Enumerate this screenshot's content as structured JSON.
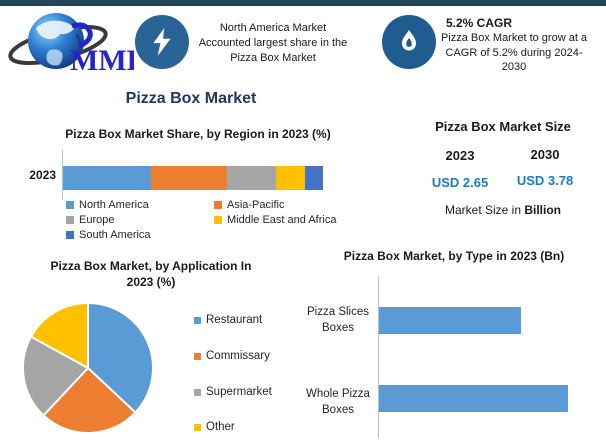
{
  "colors": {
    "topbar": "#23455A",
    "navy_title": "#1F3864",
    "usd_blue": "#1D7AC2",
    "axis_gray": "#BFBFBF",
    "bolt_circle": "#2A6496",
    "flame_circle": "#1F5C8F"
  },
  "header": {
    "logo_text": "MMR",
    "highlight1": {
      "lines": [
        "North America Market",
        "Accounted largest share in the",
        "Pizza Box Market"
      ]
    },
    "highlight2": {
      "heading": "5.2% CAGR",
      "body": "Pizza Box Market to grow at a CAGR of 5.2% during 2024-2030"
    }
  },
  "main_title": "Pizza Box Market",
  "market_size": {
    "title": "Pizza Box Market Size",
    "year_1": "2023",
    "year_2": "2030",
    "value_1": "USD 2.65",
    "value_2": "USD 3.78",
    "note_prefix": "Market Size in ",
    "note_bold": "Billion"
  },
  "chart_data": [
    {
      "type": "bar",
      "subtype": "stacked-horizontal",
      "title": "Pizza Box Market Share, by Region in 2023 (%)",
      "categories": [
        "2023"
      ],
      "series": [
        {
          "name": "North America",
          "values": [
            34
          ],
          "color": "#5B9BD5"
        },
        {
          "name": "Asia-Pacific",
          "values": [
            29
          ],
          "color": "#ED7D31"
        },
        {
          "name": "Europe",
          "values": [
            19
          ],
          "color": "#A5A5A5"
        },
        {
          "name": "Middle East and Africa",
          "values": [
            11
          ],
          "color": "#FFC000"
        },
        {
          "name": "South America",
          "values": [
            7
          ],
          "color": "#4472C4"
        }
      ],
      "xlim": [
        0,
        100
      ],
      "grid": false,
      "legend_position": "bottom"
    },
    {
      "type": "pie",
      "title": "Pizza Box Market, by Application In 2023 (%)",
      "title_lines": [
        "Pizza Box Market, by Application In",
        "2023 (%)"
      ],
      "labels": [
        "Restaurant",
        "Commissary",
        "Supermarket",
        "Other"
      ],
      "values": [
        37,
        25,
        21,
        17
      ],
      "colors": [
        "#5B9BD5",
        "#ED7D31",
        "#A5A5A5",
        "#FFC000"
      ],
      "start_angle_deg_from_top": 0,
      "direction": "clockwise",
      "legend_position": "right"
    },
    {
      "type": "bar",
      "subtype": "horizontal",
      "title": "Pizza Box Market, by Type in 2023 (Bn)",
      "categories": [
        "Pizza Slices Boxes",
        "Whole Pizza Boxes"
      ],
      "values": [
        1.14,
        1.51
      ],
      "color": "#5B9BD5",
      "xlim": [
        0,
        1.6
      ],
      "grid": false,
      "ylabel": "",
      "xlabel": ""
    }
  ]
}
